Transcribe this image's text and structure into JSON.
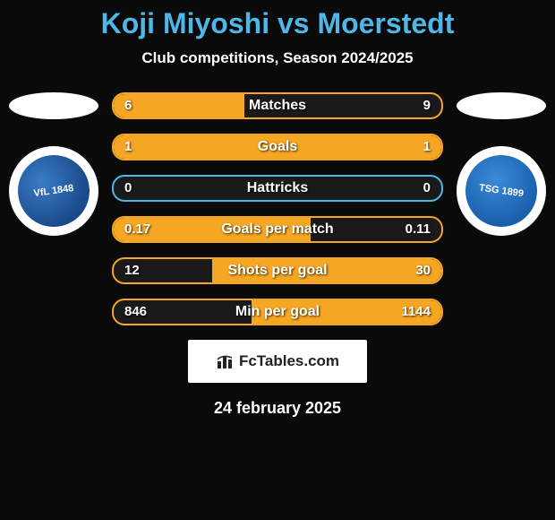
{
  "title": "Koji Miyoshi vs Moerstedt",
  "subtitle": "Club competitions, Season 2024/2025",
  "date": "24 february 2025",
  "branding": {
    "label": "FcTables.com",
    "bg_color": "#ffffff",
    "text_color": "#222222"
  },
  "colors": {
    "page_bg": "#0a0a0a",
    "title_color": "#4db8e8",
    "text_color": "#ffffff",
    "bar_fill": "#f5a623",
    "bar_track": "#1a1a1a"
  },
  "teams": {
    "left": {
      "name": "VfL Bochum",
      "crest_color": "#1a4a8a",
      "crest_text": "VfL 1848"
    },
    "right": {
      "name": "TSG 1899 Hoffenheim",
      "crest_color": "#1a5fae",
      "crest_text": "TSG 1899"
    }
  },
  "stats": [
    {
      "label": "Matches",
      "left_val": "6",
      "right_val": "9",
      "left_pct": 40,
      "right_pct": 0,
      "border": "#f5a623"
    },
    {
      "label": "Goals",
      "left_val": "1",
      "right_val": "1",
      "left_pct": 50,
      "right_pct": 50,
      "border": "#f5a623"
    },
    {
      "label": "Hattricks",
      "left_val": "0",
      "right_val": "0",
      "left_pct": 0,
      "right_pct": 0,
      "border": "#4db8e8"
    },
    {
      "label": "Goals per match",
      "left_val": "0.17",
      "right_val": "0.11",
      "left_pct": 60,
      "right_pct": 0,
      "border": "#f5a623"
    },
    {
      "label": "Shots per goal",
      "left_val": "12",
      "right_val": "30",
      "left_pct": 0,
      "right_pct": 70,
      "border": "#f5a623"
    },
    {
      "label": "Min per goal",
      "left_val": "846",
      "right_val": "1144",
      "left_pct": 0,
      "right_pct": 58,
      "border": "#f5a623"
    }
  ]
}
